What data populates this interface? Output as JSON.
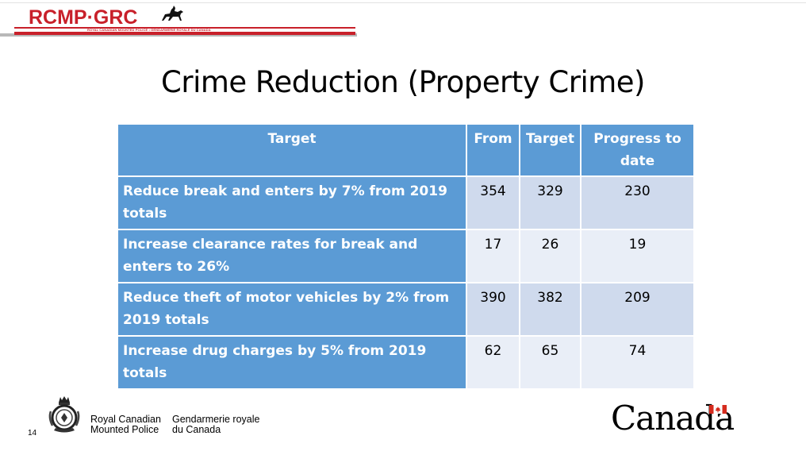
{
  "header": {
    "brand": "RCMP·GRC",
    "brand_sub": "ROYAL CANADIAN MOUNTED POLICE • GENDARMERIE ROYALE DU CANADA"
  },
  "title": "Crime Reduction (Property Crime)",
  "table": {
    "headers": [
      "Target",
      "From",
      "Target",
      "Progress to date"
    ],
    "rows": [
      {
        "target": "Reduce break and enters by 7% from 2019 totals",
        "from": "354",
        "goal": "329",
        "progress": "230"
      },
      {
        "target": "Increase clearance rates for break and enters to 26%",
        "from": "17",
        "goal": "26",
        "progress": "19"
      },
      {
        "target": "Reduce theft of motor vehicles by 2% from 2019 totals",
        "from": "390",
        "goal": "382",
        "progress": "209"
      },
      {
        "target": "Increase drug charges by 5% from 2019 totals",
        "from": "62",
        "goal": "65",
        "progress": "74"
      }
    ]
  },
  "footer": {
    "page_number": "14",
    "org_en": "Royal Canadian Mounted Police",
    "org_en_line1": "Royal Canadian",
    "org_en_line2": "Mounted Police",
    "org_fr_line1": "Gendarmerie royale",
    "org_fr_line2": "du Canada",
    "wordmark": "Canada"
  },
  "colors": {
    "brand_red": "#c8202a",
    "header_blue": "#5b9bd5",
    "row_band_dark": "#cfdaed",
    "row_band_light": "#e9eef7"
  }
}
